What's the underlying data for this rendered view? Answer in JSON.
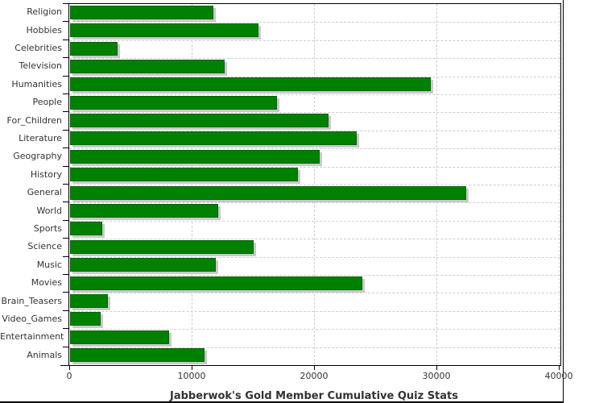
{
  "chart_data": {
    "type": "bar",
    "orientation": "horizontal",
    "title": "Jabberwok's Gold Member Cumulative Quiz Stats",
    "categories": [
      "Religion",
      "Hobbies",
      "Celebrities",
      "Television",
      "Humanities",
      "People",
      "For_Children",
      "Literature",
      "Geography",
      "History",
      "General",
      "World",
      "Sports",
      "Science",
      "Music",
      "Movies",
      "Brain_Teasers",
      "Video_Games",
      "Entertainment",
      "Animals"
    ],
    "values": [
      11700,
      15400,
      3900,
      12600,
      29500,
      16900,
      21100,
      23400,
      20400,
      18600,
      32400,
      12100,
      2600,
      15000,
      11900,
      23900,
      3100,
      2500,
      8100,
      11000
    ],
    "xlabel": "",
    "ylabel": "",
    "xlim": [
      0,
      40200
    ],
    "x_ticks": [
      {
        "value": 0,
        "label": "0"
      },
      {
        "value": 10000,
        "label": "10000"
      },
      {
        "value": 20000,
        "label": "20000"
      },
      {
        "value": 30000,
        "label": "30000"
      },
      {
        "value": 40000,
        "label": "40000"
      }
    ],
    "grid": true,
    "legend": "none",
    "bar_color": "#008000",
    "bar_border_color": "#046404",
    "shadow_color": "#c9c9c9",
    "grid_color": "#cfcfcf",
    "axis_color": "#000000",
    "text_color": "#333333",
    "background_color": "#ffffff"
  }
}
